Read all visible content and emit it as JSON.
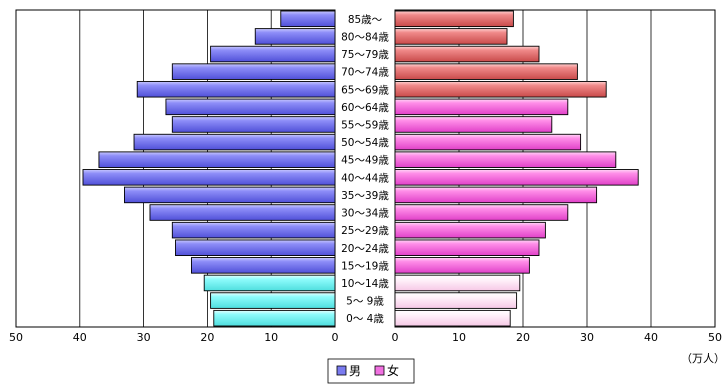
{
  "chart_data": {
    "type": "bar",
    "orientation": "horizontal",
    "layout": "population-pyramid",
    "categories": [
      "85歳～",
      "80～84歳",
      "75～79歳",
      "70～74歳",
      "65～69歳",
      "60～64歳",
      "55～59歳",
      "50～54歳",
      "45～49歳",
      "40～44歳",
      "35～39歳",
      "30～34歳",
      "25～29歳",
      "20～24歳",
      "15～19歳",
      "10～14歳",
      "5～ 9歳",
      "0～ 4歳"
    ],
    "series": [
      {
        "name": "男",
        "side": "left",
        "values": [
          8.5,
          12.5,
          19.5,
          25.5,
          31.0,
          26.5,
          25.5,
          31.5,
          37.0,
          39.5,
          33.0,
          29.0,
          25.5,
          25.0,
          22.5,
          20.5,
          19.5,
          19.0
        ]
      },
      {
        "name": "女",
        "side": "right",
        "values": [
          18.5,
          17.5,
          22.5,
          28.5,
          33.0,
          27.0,
          24.5,
          29.0,
          34.5,
          38.0,
          31.5,
          27.0,
          23.5,
          22.5,
          21.0,
          19.5,
          19.0,
          18.0
        ]
      }
    ],
    "xlim_left": [
      50,
      0
    ],
    "xlim_right": [
      0,
      50
    ],
    "xticks_left": [
      "50",
      "40",
      "30",
      "20",
      "10",
      "0"
    ],
    "xticks_right": [
      "0",
      "10",
      "20",
      "30",
      "40",
      "50"
    ],
    "unit_label": "（万人）",
    "legend": [
      {
        "label": "男",
        "color": "#7a7bf0"
      },
      {
        "label": "女",
        "color": "#f070e0"
      }
    ],
    "legend_position": "bottom",
    "grid": true,
    "age_band_colors": {
      "male": {
        "young": "#80ffff",
        "working": "#7a7bf0",
        "elderly": "#7a7bf0"
      },
      "female": {
        "young": "#fff0f8",
        "working": "#ff80e0",
        "elderly": "#e87b7b"
      }
    },
    "age_band_groups": {
      "young": [
        15,
        16,
        17
      ],
      "working": [
        5,
        6,
        7,
        8,
        9,
        10,
        11,
        12,
        13,
        14
      ],
      "elderly": [
        0,
        1,
        2,
        3,
        4
      ]
    }
  }
}
